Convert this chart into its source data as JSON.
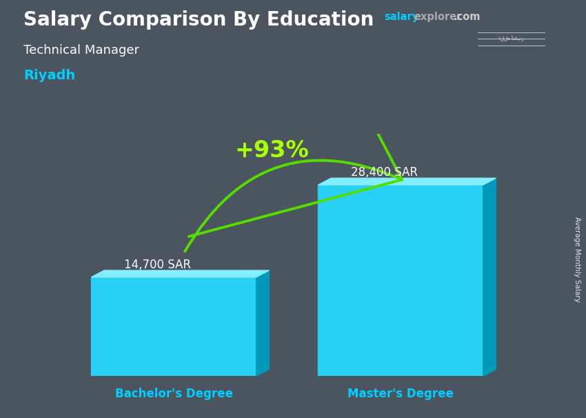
{
  "title_main": "Salary Comparison By Education",
  "subtitle1": "Technical Manager",
  "subtitle2": "Riyadh",
  "categories": [
    "Bachelor's Degree",
    "Master's Degree"
  ],
  "values": [
    14700,
    28400
  ],
  "labels": [
    "14,700 SAR",
    "28,400 SAR"
  ],
  "face_color": "#29D0F5",
  "top_color": "#82EEFF",
  "side_color": "#0099BB",
  "pct_label": "+93%",
  "pct_color": "#AAFF00",
  "arrow_color": "#55DD00",
  "ylabel": "Average Monthly Salary",
  "flag_color": "#2DB346",
  "salary_color": "#00CFFF",
  "label_color": "#ffffff",
  "cat_color": "#00CFFF",
  "riyadh_color": "#00CFFF",
  "bg_color": "#4a5560",
  "ylim": [
    0,
    36000
  ],
  "bar_width": 0.32,
  "bar_positions": [
    0.28,
    0.72
  ]
}
